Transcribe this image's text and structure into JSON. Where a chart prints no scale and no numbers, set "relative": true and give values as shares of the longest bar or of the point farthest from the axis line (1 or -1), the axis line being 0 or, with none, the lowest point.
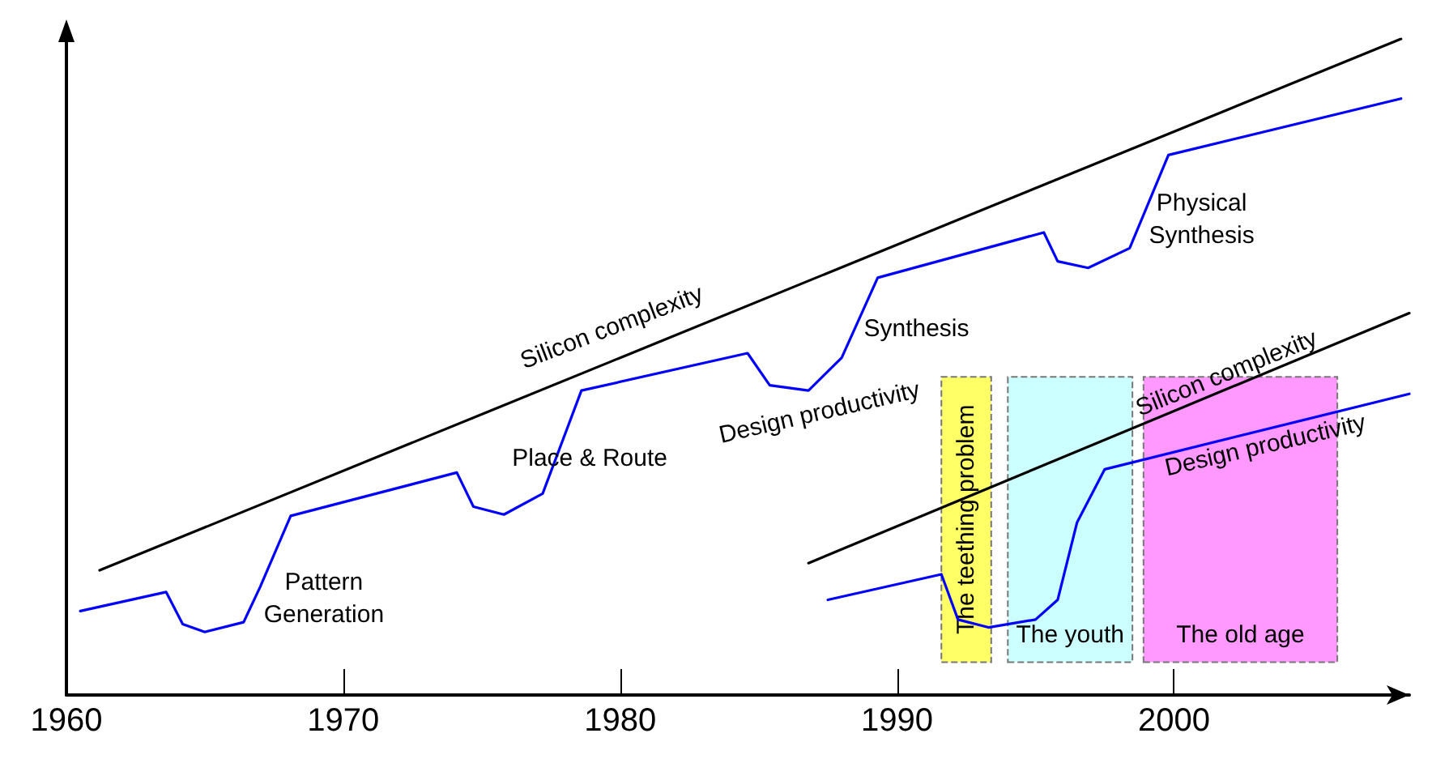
{
  "chart_data": {
    "type": "line",
    "relative": true,
    "marker": "none",
    "grid": false,
    "xlim": [
      1960,
      2008.5
    ],
    "xticks": [
      1960,
      1970,
      1980,
      1990,
      2000
    ],
    "series": [
      {
        "color": "#000000",
        "x": [
          1961.2,
          2008.2
        ],
        "values": [
          0.19,
          1.0
        ]
      },
      {
        "color": "#0000ff",
        "x": [
          1960.5,
          1963.6,
          1964.2,
          1965.0,
          1966.4,
          1967.0,
          1968.1,
          1974.1,
          1974.7,
          1975.8,
          1977.2,
          1978.6,
          1984.6,
          1985.4,
          1986.8,
          1988.0,
          1989.3,
          1995.3,
          1995.8,
          1996.9,
          1998.4,
          1999.8,
          2008.2
        ],
        "values": [
          0.128,
          0.157,
          0.108,
          0.096,
          0.111,
          0.165,
          0.273,
          0.339,
          0.287,
          0.275,
          0.307,
          0.464,
          0.521,
          0.472,
          0.464,
          0.514,
          0.636,
          0.705,
          0.661,
          0.651,
          0.681,
          0.823,
          0.909
        ]
      },
      {
        "color": "#000000",
        "x": [
          1986.8,
          2008.5
        ],
        "values": [
          0.201,
          0.582
        ]
      },
      {
        "color": "#0000ff",
        "x": [
          1987.5,
          1991.6,
          1992.2,
          1993.3,
          1995.0,
          1995.8,
          1996.5,
          1997.5,
          2008.5
        ],
        "values": [
          0.145,
          0.184,
          0.115,
          0.103,
          0.115,
          0.145,
          0.263,
          0.344,
          0.459
        ]
      }
    ],
    "bands": [
      {
        "axis": "x",
        "from": 1991.6,
        "to": 1993.4,
        "label": "The teething problem",
        "color": "#ffff66"
      },
      {
        "axis": "x",
        "from": 1994.0,
        "to": 1998.5,
        "label": "The youth",
        "color": "#ccffff"
      },
      {
        "axis": "x",
        "from": 1998.9,
        "to": 2005.9,
        "label": "The old age",
        "color": "#ff99ff"
      }
    ],
    "annotations": [
      "Silicon complexity",
      "Design productivity",
      "Pattern\nGeneration",
      "Place & Route",
      "Synthesis",
      "Physical\nSynthesis",
      "Silicon complexity",
      "Design productivity"
    ]
  }
}
